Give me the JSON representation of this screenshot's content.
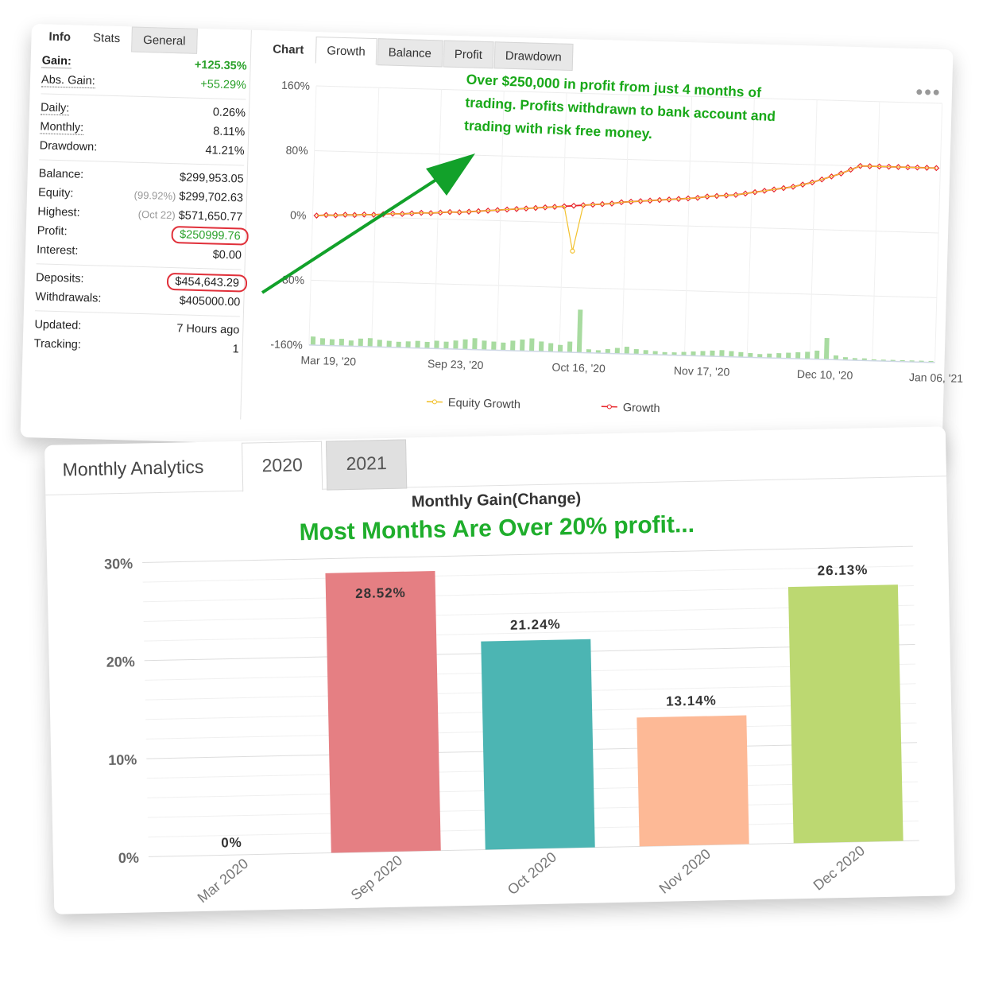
{
  "stats_panel": {
    "tabs": [
      "Info",
      "Stats",
      "General"
    ],
    "rows": [
      {
        "label": "Gain:",
        "value": "+125.35%",
        "green": true,
        "bold_label": true
      },
      {
        "label": "Abs. Gain:",
        "value": "+55.29%",
        "green": true
      },
      {
        "sep": true
      },
      {
        "label": "Daily:",
        "value": "0.26%"
      },
      {
        "label": "Monthly:",
        "value": "8.11%"
      },
      {
        "label": "Drawdown:",
        "value": "41.21%"
      },
      {
        "sep": true
      },
      {
        "label": "Balance:",
        "value": "$299,953.05"
      },
      {
        "label": "Equity:",
        "prefix": "(99.92%)",
        "value": "$299,702.63"
      },
      {
        "label": "Highest:",
        "prefix": "(Oct 22)",
        "value": "$571,650.77"
      },
      {
        "label": "Profit:",
        "value": "$250999.76",
        "green": true,
        "circled": true
      },
      {
        "label": "Interest:",
        "value": "$0.00"
      },
      {
        "sep": true
      },
      {
        "label": "Deposits:",
        "value": "$454,643.29",
        "circled": true
      },
      {
        "label": "Withdrawals:",
        "value": "$405000.00"
      },
      {
        "sep": true
      },
      {
        "label": "Updated:",
        "value": "7 Hours ago"
      },
      {
        "label": "Tracking:",
        "value": "1"
      }
    ]
  },
  "growth_panel": {
    "tabs": [
      "Chart",
      "Growth",
      "Balance",
      "Profit",
      "Drawdown"
    ],
    "menu_icon": "more-dots-icon",
    "annotation": "Over $250,000 in profit from just 4 months of trading.  Profits withdrawn to bank account and trading with risk free money.",
    "colors": {
      "equity": "#f2c12e",
      "growth": "#e8262b",
      "volume": "#a8dba0",
      "arrow": "#12a12a"
    }
  },
  "monthly_analytics": {
    "title": "Monthly Analytics",
    "year_tabs": [
      "2020",
      "2021"
    ],
    "active_year": "2020"
  },
  "chart_data": [
    {
      "type": "line",
      "x_tick_labels": [
        "Mar 19, '20",
        "Sep 23, '20",
        "Oct 16, '20",
        "Nov 17, '20",
        "Dec 10, '20",
        "Jan 06, '21"
      ],
      "y_tick_labels": [
        "160%",
        "80%",
        "0%",
        "-80%",
        "-160%"
      ],
      "ylim": [
        -160,
        160
      ],
      "legend": [
        "Equity Growth",
        "Growth"
      ],
      "legend_position": "bottom",
      "grid": true,
      "series": [
        {
          "name": "Growth",
          "values": [
            0,
            1,
            1,
            2,
            2,
            3,
            3,
            4,
            5,
            5,
            6,
            7,
            7,
            8,
            9,
            9,
            10,
            11,
            12,
            13,
            14,
            15,
            16,
            17,
            18,
            19,
            20,
            21,
            22,
            23,
            24,
            25,
            27,
            28,
            29,
            30,
            31,
            32,
            33,
            34,
            35,
            37,
            38,
            39,
            40,
            42,
            44,
            46,
            48,
            50,
            52,
            55,
            58,
            62,
            66,
            70,
            75,
            80,
            80,
            80,
            80,
            80,
            80,
            80,
            80,
            80
          ]
        },
        {
          "name": "Equity Growth",
          "values": [
            0,
            1,
            1,
            2,
            2,
            3,
            3,
            4,
            5,
            5,
            6,
            7,
            7,
            8,
            9,
            9,
            10,
            11,
            12,
            13,
            14,
            15,
            16,
            17,
            18,
            19,
            20,
            -35,
            22,
            23,
            24,
            25,
            27,
            28,
            29,
            30,
            31,
            32,
            33,
            34,
            35,
            37,
            38,
            39,
            40,
            42,
            44,
            46,
            48,
            50,
            52,
            55,
            58,
            62,
            66,
            70,
            75,
            80,
            80,
            80,
            80,
            80,
            80,
            80,
            80,
            80
          ]
        }
      ],
      "volume": [
        12,
        10,
        9,
        10,
        8,
        11,
        12,
        10,
        9,
        8,
        9,
        10,
        9,
        11,
        10,
        12,
        14,
        16,
        13,
        12,
        11,
        14,
        16,
        18,
        14,
        12,
        10,
        15,
        60,
        5,
        4,
        6,
        8,
        10,
        7,
        6,
        5,
        4,
        4,
        5,
        6,
        7,
        8,
        9,
        8,
        7,
        6,
        5,
        6,
        7,
        8,
        9,
        10,
        12,
        30,
        6,
        4,
        3,
        3,
        2,
        2,
        2,
        2,
        2,
        2,
        2
      ]
    },
    {
      "type": "bar",
      "title": "Monthly Gain(Change)",
      "subtitle": "Most Months Are Over 20% profit...",
      "categories": [
        "Mar 2020",
        "Sep 2020",
        "Oct 2020",
        "Nov 2020",
        "Dec 2020"
      ],
      "values": [
        0,
        28.52,
        21.24,
        13.14,
        26.13
      ],
      "value_labels": [
        "0%",
        "28.52%",
        "21.24%",
        "13.14%",
        "26.13%"
      ],
      "colors": [
        "#cccccc",
        "#e57f83",
        "#4cb5b3",
        "#fdb996",
        "#bcd871"
      ],
      "y_tick_labels": [
        "0%",
        "10%",
        "20%",
        "30%"
      ],
      "ylim": [
        0,
        30
      ],
      "grid": true
    }
  ]
}
